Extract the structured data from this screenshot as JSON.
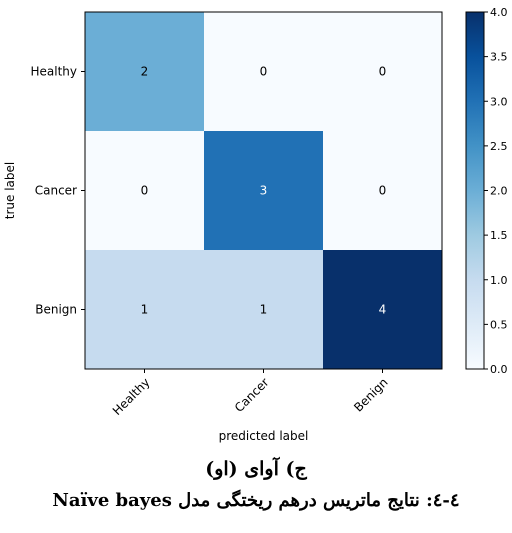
{
  "chart_data": {
    "type": "heatmap",
    "row_labels": [
      "Healthy",
      "Cancer",
      "Benign"
    ],
    "col_labels": [
      "Healthy",
      "Cancer",
      "Benign"
    ],
    "values": [
      [
        2,
        0,
        0
      ],
      [
        0,
        3,
        0
      ],
      [
        1,
        1,
        4
      ]
    ],
    "xlabel": "predicted label",
    "ylabel": "true label",
    "colorbar_range": [
      0,
      4
    ],
    "colorbar_ticks": [
      "0.0",
      "0.5",
      "1.0",
      "1.5",
      "2.0",
      "2.5",
      "3.0",
      "3.5",
      "4.0"
    ],
    "colormap": "Blues",
    "colormap_stops": [
      "#f7fbff",
      "#deebf7",
      "#c6dbef",
      "#9ecae1",
      "#6baed6",
      "#4292c6",
      "#2171b5",
      "#08519c",
      "#08306b"
    ]
  },
  "captions": {
    "subcaption": "ج) آوای (او)",
    "main": "٤-٤: نتایج ماتریس درهم ریختگی مدل Naïve bayes"
  }
}
